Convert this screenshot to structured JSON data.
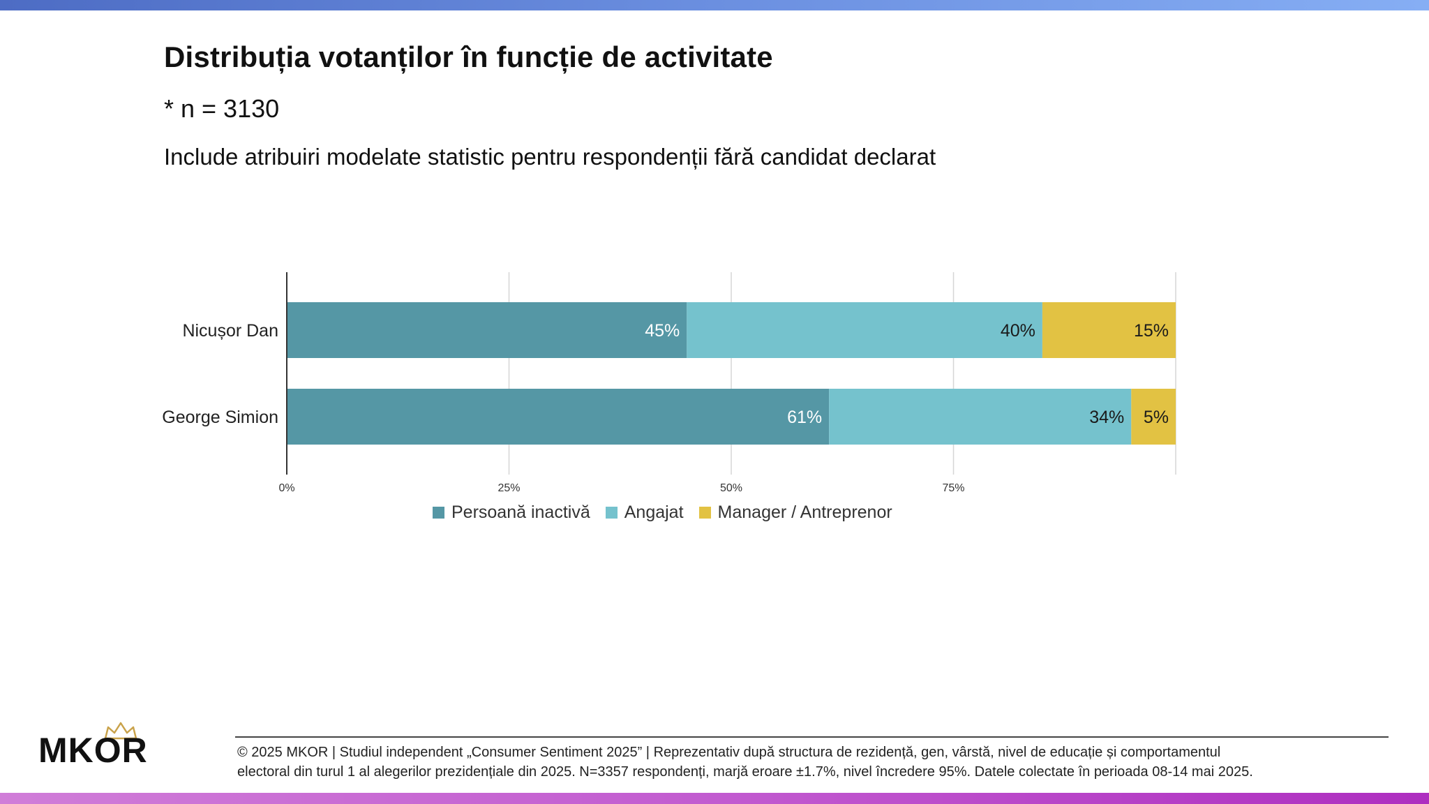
{
  "header": {
    "title": "Distribuția votanților în funcție de activitate",
    "sample": "* n = 3130",
    "subtitle": "Include atribuiri modelate statistic pentru respondenții fără candidat declarat"
  },
  "chart_data": {
    "type": "bar",
    "orientation": "horizontal",
    "stacked": true,
    "categories": [
      "Nicușor Dan",
      "George Simion"
    ],
    "series": [
      {
        "name": "Persoană inactivă",
        "color": "#5597a5",
        "label_color": "#ffffff",
        "values": [
          45,
          61
        ],
        "labels": [
          "45%",
          "61%"
        ]
      },
      {
        "name": "Angajat",
        "color": "#75c2cd",
        "label_color": "#1a1a1a",
        "values": [
          40,
          34
        ],
        "labels": [
          "40%",
          "34%"
        ]
      },
      {
        "name": "Manager / Antreprenor",
        "color": "#e2c243",
        "label_color": "#1a1a1a",
        "values": [
          15,
          5
        ],
        "labels": [
          "15%",
          "5%"
        ]
      }
    ],
    "xlim": [
      0,
      100
    ],
    "xticks": [
      0,
      25,
      50,
      75
    ],
    "xtick_labels": [
      "0%",
      "25%",
      "50%",
      "75%"
    ],
    "grid": true,
    "legend": "bottom",
    "xlabel": "",
    "ylabel": ""
  },
  "footer": {
    "brand": "MKOR",
    "line1": "© 2025 MKOR | Studiul independent „Consumer Sentiment 2025” | Reprezentativ după structura de rezidență, gen, vârstă, nivel de educație și comportamentul",
    "line2": "electoral din turul 1 al alegerilor prezidențiale din 2025. N=3357 respondenți, marjă eroare ±1.7%, nivel încredere 95%. Datele colectate în perioada 08-14 mai 2025."
  }
}
